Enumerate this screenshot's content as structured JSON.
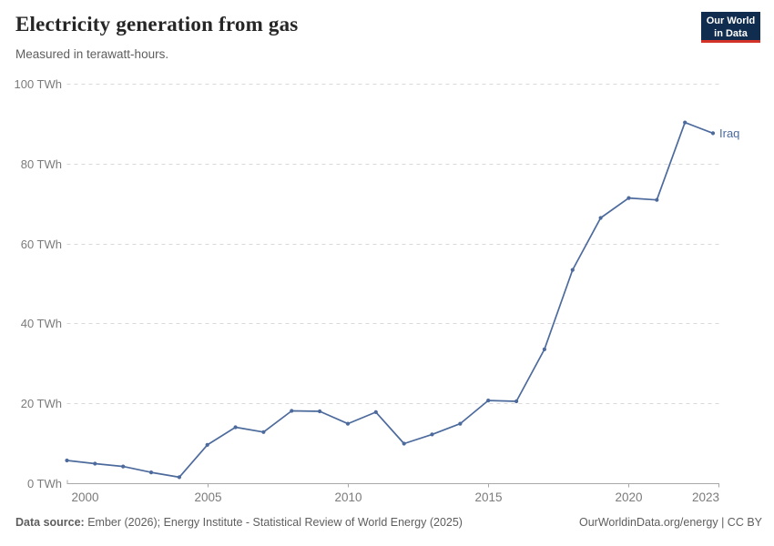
{
  "header": {
    "title": "Electricity generation from gas",
    "subtitle": "Measured in terawatt-hours."
  },
  "logo": {
    "line1": "Our World",
    "line2": "in Data"
  },
  "footer": {
    "source_label": "Data source:",
    "source_text": " Ember (2026); Energy Institute - Statistical Review of World Energy (2025)",
    "link_text": "OurWorldinData.org/energy | CC BY"
  },
  "colors": {
    "line": "#4C6A9C",
    "end_label": "#4C6A9C",
    "grid": "#DBDBDB",
    "axis": "#A8A8A8",
    "tick_text": "#7B7B7B",
    "logo_bg": "#102D50",
    "logo_red": "#D23228"
  },
  "chart_data": {
    "type": "line",
    "title": "Electricity generation from gas",
    "subtitle": "Measured in terawatt-hours.",
    "unit": "TWh",
    "x": [
      2000,
      2001,
      2002,
      2003,
      2004,
      2005,
      2006,
      2007,
      2008,
      2009,
      2010,
      2011,
      2012,
      2013,
      2014,
      2015,
      2016,
      2017,
      2018,
      2019,
      2020,
      2021,
      2022,
      2023
    ],
    "series": [
      {
        "name": "Iraq",
        "color": "#4C6A9C",
        "values": [
          5.7,
          4.9,
          4.2,
          2.7,
          1.5,
          9.6,
          14.0,
          12.8,
          18.1,
          18.0,
          14.9,
          17.8,
          9.9,
          12.2,
          14.9,
          20.7,
          20.5,
          33.5,
          53.4,
          66.4,
          71.4,
          70.9,
          90.3,
          87.6
        ]
      }
    ],
    "xlim": [
      2000,
      2023
    ],
    "ylim": [
      0,
      100
    ],
    "xticks": [
      2000,
      2005,
      2010,
      2015,
      2020,
      2023
    ],
    "yticks": [
      0,
      20,
      40,
      60,
      80,
      100
    ],
    "ytick_suffix": " TWh",
    "grid": "dashed-horizontal",
    "legend_position": "end-of-line",
    "end_label": "Iraq"
  }
}
